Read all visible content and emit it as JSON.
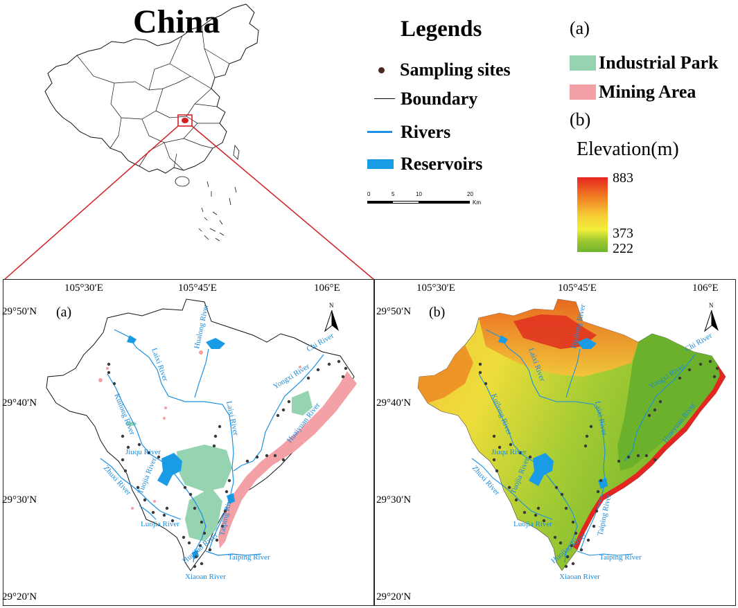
{
  "china_label": "China",
  "legend": {
    "title": "Legends",
    "items": [
      {
        "label": "Sampling sites",
        "symbol": "dot",
        "color": "#4a2a1f"
      },
      {
        "label": "Boundary",
        "symbol": "line",
        "color": "#000000"
      },
      {
        "label": "Rivers",
        "symbol": "line",
        "color": "#1a8fe3"
      },
      {
        "label": "Reservoirs",
        "symbol": "rect",
        "color": "#1a9be6"
      }
    ]
  },
  "panel_a_legend": {
    "tag": "(a)",
    "items": [
      {
        "label": "Industrial Park",
        "color": "#96d3b0"
      },
      {
        "label": "Mining Area",
        "color": "#f3a0a6"
      }
    ]
  },
  "panel_b_legend": {
    "tag": "(b)",
    "elevation_title": "Elevation(m)",
    "max": "883",
    "mid": "373",
    "min": "222",
    "colors": [
      "#e52620",
      "#f07a22",
      "#f6c935",
      "#f2ee3a",
      "#9dc832",
      "#6fb52b"
    ]
  },
  "scale_bar": {
    "labels": [
      "0",
      "5",
      "10",
      "20"
    ],
    "unit": "Km"
  },
  "panels": [
    {
      "tag": "(a)",
      "lon_labels": [
        "105°30′E",
        "105°45′E",
        "106°E"
      ],
      "lat_labels": [
        "29°50′N",
        "29°40′N",
        "29°30′N",
        "29°20′N"
      ]
    },
    {
      "tag": "(b)",
      "lon_labels": [
        "105°30′E",
        "105°45′E",
        "106°E"
      ],
      "lat_labels": [
        "29°50′N",
        "29°40′N",
        "29°30′N",
        "29°20′N"
      ]
    }
  ],
  "north_label": "N",
  "rivers_a": [
    "Laixi River",
    "Hualong River",
    "Chi River",
    "Yongxi River",
    "Kuilong River",
    "Laixi River",
    "Huaiyuan River",
    "Jiuqu River",
    "Zhuxi River",
    "Tuojia River",
    "Taiping River",
    "Luojia River",
    "Huojiao River",
    "Taiping River",
    "Xiaoan River"
  ],
  "rivers_b": [
    "Laixi River",
    "Hualong River",
    "Chi River",
    "Yongxi River",
    "Kuilong River",
    "Laixi River",
    "Huaiyuan River",
    "Jiuqu River",
    "Zhuxi River",
    "Tuojia River",
    "Taiping River",
    "Luojia River",
    "Huojiao River",
    "Taiping River",
    "Xiaoan River"
  ]
}
